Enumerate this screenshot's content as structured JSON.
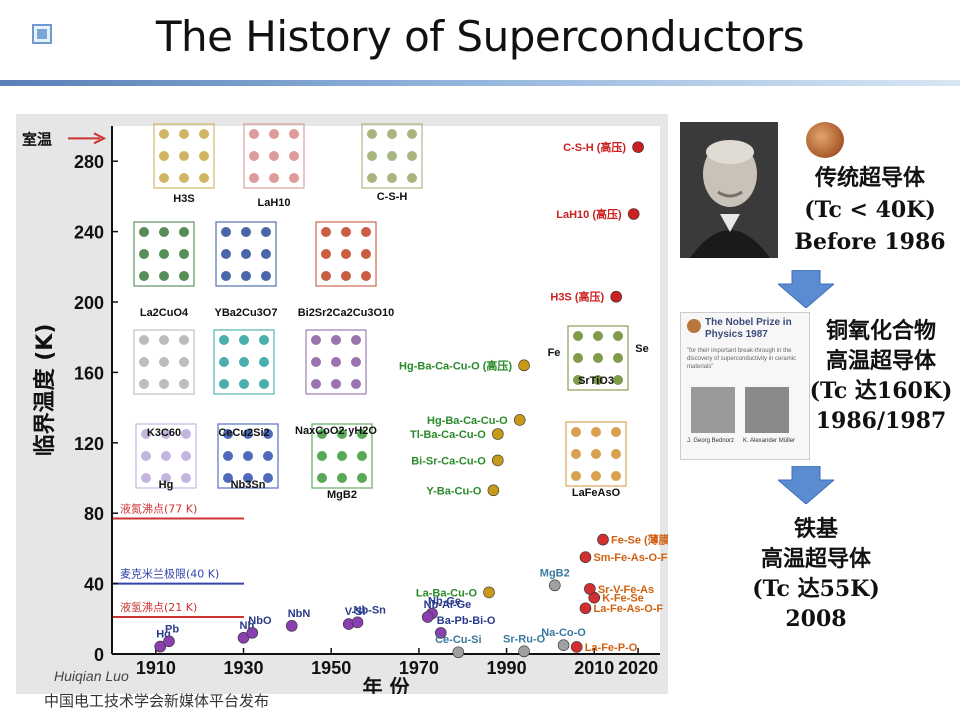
{
  "slide": {
    "title": "The History of Superconductors",
    "author": "Huiqian Luo",
    "footer": "中国电工技术学会新媒体平台发布"
  },
  "side_panel": {
    "block1": [
      "传统超导体",
      "(Tc < 40K)",
      "Before 1986"
    ],
    "block2": [
      "铜氧化合物",
      "高温超导体",
      "(Tc 达160K)",
      "1986/1987"
    ],
    "block3": [
      "铁基",
      "高温超导体",
      "(Tc 达55K)",
      "2008"
    ],
    "nobel_card": {
      "title": "The Nobel Prize in Physics 1987",
      "citation": "\"for their important break-through in the discovery of superconductivity in ceramic materials\"",
      "laureate1": "J. Georg Bednorz",
      "laureate2": "K. Alexander Müller"
    },
    "colors": {
      "arrow": "#5b8bd0"
    }
  },
  "chart_data": {
    "type": "scatter",
    "ylabel": "临界温度 (K)",
    "xlabel": "年 份",
    "xlim": [
      1900,
      2025
    ],
    "ylim": [
      0,
      300
    ],
    "xticks": [
      1910,
      1930,
      1950,
      1970,
      1990,
      2010,
      2020
    ],
    "yticks": [
      0,
      40,
      80,
      120,
      160,
      200,
      240,
      280
    ],
    "grid": false,
    "reference_lines": [
      {
        "label": "室温",
        "y": 293,
        "color": "#cc3333"
      },
      {
        "label": "液氮沸点(77 K)",
        "y": 77,
        "color": "#cc3333"
      },
      {
        "label": "麦克米兰极限(40 K)",
        "y": 40,
        "color": "#3344aa"
      },
      {
        "label": "液氢沸点(21 K)",
        "y": 21,
        "color": "#cc3333"
      }
    ],
    "series": [
      {
        "name": "conventional",
        "color": "#8a3fb0",
        "label_color": "#2a3a8a",
        "points": [
          {
            "label": "Hg",
            "x": 1911,
            "y": 4.2
          },
          {
            "label": "Pb",
            "x": 1913,
            "y": 7.2
          },
          {
            "label": "Nb",
            "x": 1930,
            "y": 9.2
          },
          {
            "label": "NbO",
            "x": 1932,
            "y": 12
          },
          {
            "label": "NbN",
            "x": 1941,
            "y": 16
          },
          {
            "label": "V-Si",
            "x": 1954,
            "y": 17
          },
          {
            "label": "Nb-Sn",
            "x": 1956,
            "y": 18
          },
          {
            "label": "Nb-Ge",
            "x": 1973,
            "y": 23
          },
          {
            "label": "Nb-Al-Ge",
            "x": 1972,
            "y": 21
          },
          {
            "label": "Ba-Pb-Bi-O",
            "x": 1975,
            "y": 12
          }
        ]
      },
      {
        "name": "cuprates",
        "color": "#c89a1a",
        "label_color": "#2a8a2a",
        "points": [
          {
            "label": "La-Ba-Cu-O",
            "x": 1986,
            "y": 35
          },
          {
            "label": "Y-Ba-Cu-O",
            "x": 1987,
            "y": 93
          },
          {
            "label": "Bi-Sr-Ca-Cu-O",
            "x": 1988,
            "y": 110
          },
          {
            "label": "Tl-Ba-Ca-Cu-O",
            "x": 1988,
            "y": 125
          },
          {
            "label": "Hg-Ba-Ca-Cu-O",
            "x": 1993,
            "y": 133
          },
          {
            "label": "Hg-Ba-Ca-Cu-O (高压)",
            "x": 1994,
            "y": 164
          }
        ]
      },
      {
        "name": "others",
        "color": "#a0a0a0",
        "label_color": "#3a7aa0",
        "points": [
          {
            "label": "Ce-Cu-Si",
            "x": 1979,
            "y": 1
          },
          {
            "label": "Sr-Ru-O",
            "x": 1994,
            "y": 1.5
          },
          {
            "label": "Na-Co-O",
            "x": 2003,
            "y": 5
          },
          {
            "label": "MgB2",
            "x": 2001,
            "y": 39
          }
        ]
      },
      {
        "name": "iron-based",
        "color": "#d03030",
        "label_color": "#d06010",
        "points": [
          {
            "label": "La-Fe-P-O",
            "x": 2006,
            "y": 4
          },
          {
            "label": "La-Fe-As-O-F",
            "x": 2008,
            "y": 26
          },
          {
            "label": "K-Fe-Se",
            "x": 2010,
            "y": 32
          },
          {
            "label": "Sr-V-Fe-As",
            "x": 2009,
            "y": 37
          },
          {
            "label": "Sm-Fe-As-O-F",
            "x": 2008,
            "y": 55
          },
          {
            "label": "Fe-Se (薄膜)",
            "x": 2012,
            "y": 65
          }
        ]
      },
      {
        "name": "hydrides",
        "color": "#cc2020",
        "label_color": "#cc2020",
        "points": [
          {
            "label": "H3S (高压)",
            "x": 2015,
            "y": 203
          },
          {
            "label": "LaH10 (高压)",
            "x": 2019,
            "y": 250
          },
          {
            "label": "C-S-H (高压)",
            "x": 2020,
            "y": 288
          }
        ]
      }
    ],
    "structure_labels": [
      "H3S",
      "LaH10",
      "C-S-H",
      "La2CuO4",
      "YBa2Cu3O7",
      "Bi2Sr2Ca2Cu3O10",
      "K3C60",
      "CeCu2Si2",
      "NaxCoO2·yH2O",
      "Hg",
      "Nb3Sn",
      "MgB2",
      "SrTiO3",
      "LaFeAsO",
      "Fe",
      "Se"
    ]
  }
}
